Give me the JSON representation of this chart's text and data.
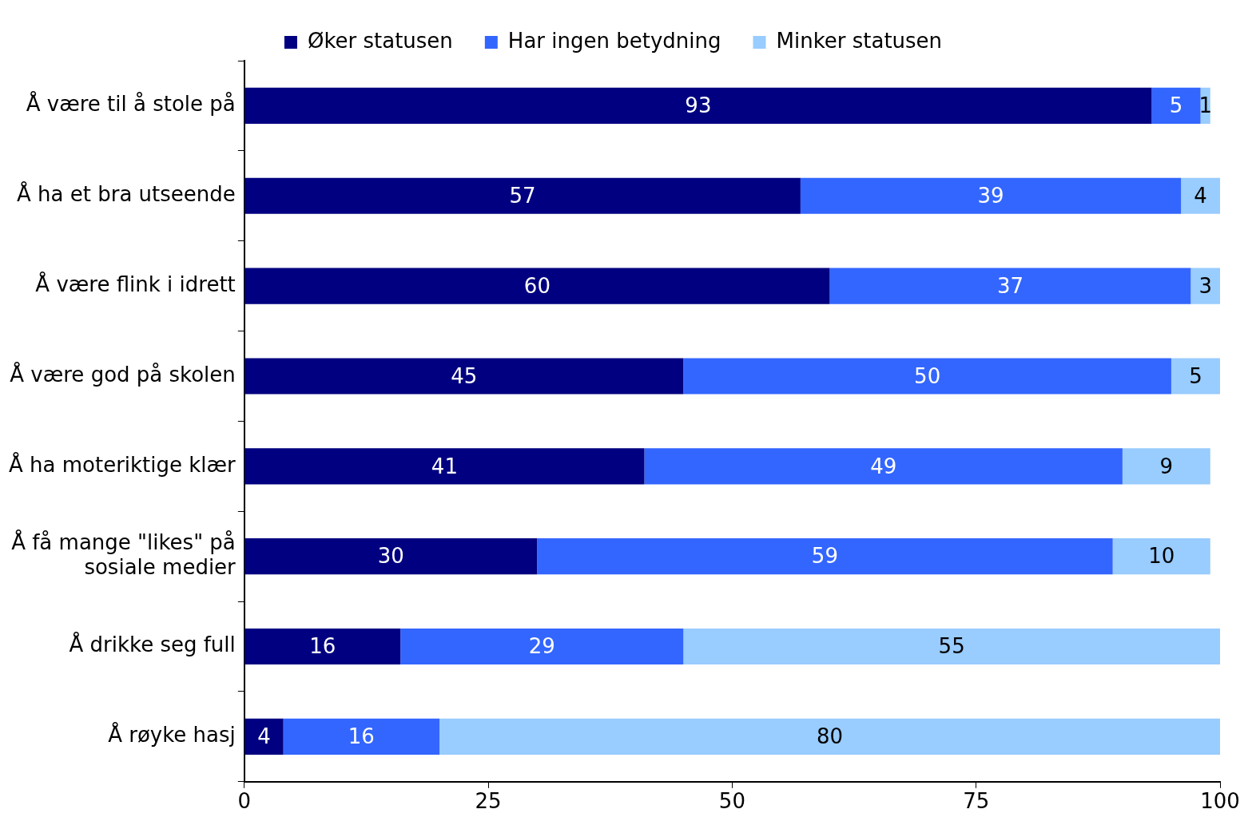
{
  "chart_data": {
    "type": "bar",
    "orientation": "horizontal",
    "stacked": true,
    "categories": [
      "Å være til å stole på",
      "Å ha et bra utseende",
      "Å være flink i idrett",
      "Å være god på skolen",
      "Å ha moteriktige klær",
      "Å få mange \"likes\" på sosiale medier",
      "Å drikke seg full",
      "Å røyke hasj"
    ],
    "series": [
      {
        "name": "Øker statusen",
        "color": "#000080",
        "values": [
          93,
          57,
          60,
          45,
          41,
          30,
          16,
          4
        ]
      },
      {
        "name": "Har ingen betydning",
        "color": "#3366ff",
        "values": [
          5,
          39,
          37,
          50,
          49,
          59,
          29,
          16
        ]
      },
      {
        "name": "Minker statusen",
        "color": "#99ccff",
        "values": [
          1,
          4,
          3,
          5,
          9,
          10,
          55,
          80
        ]
      }
    ],
    "xlim": [
      0,
      100
    ],
    "xticks": [
      0,
      25,
      50,
      75,
      100
    ],
    "grid": false,
    "legend": "top",
    "data_labels": true
  }
}
